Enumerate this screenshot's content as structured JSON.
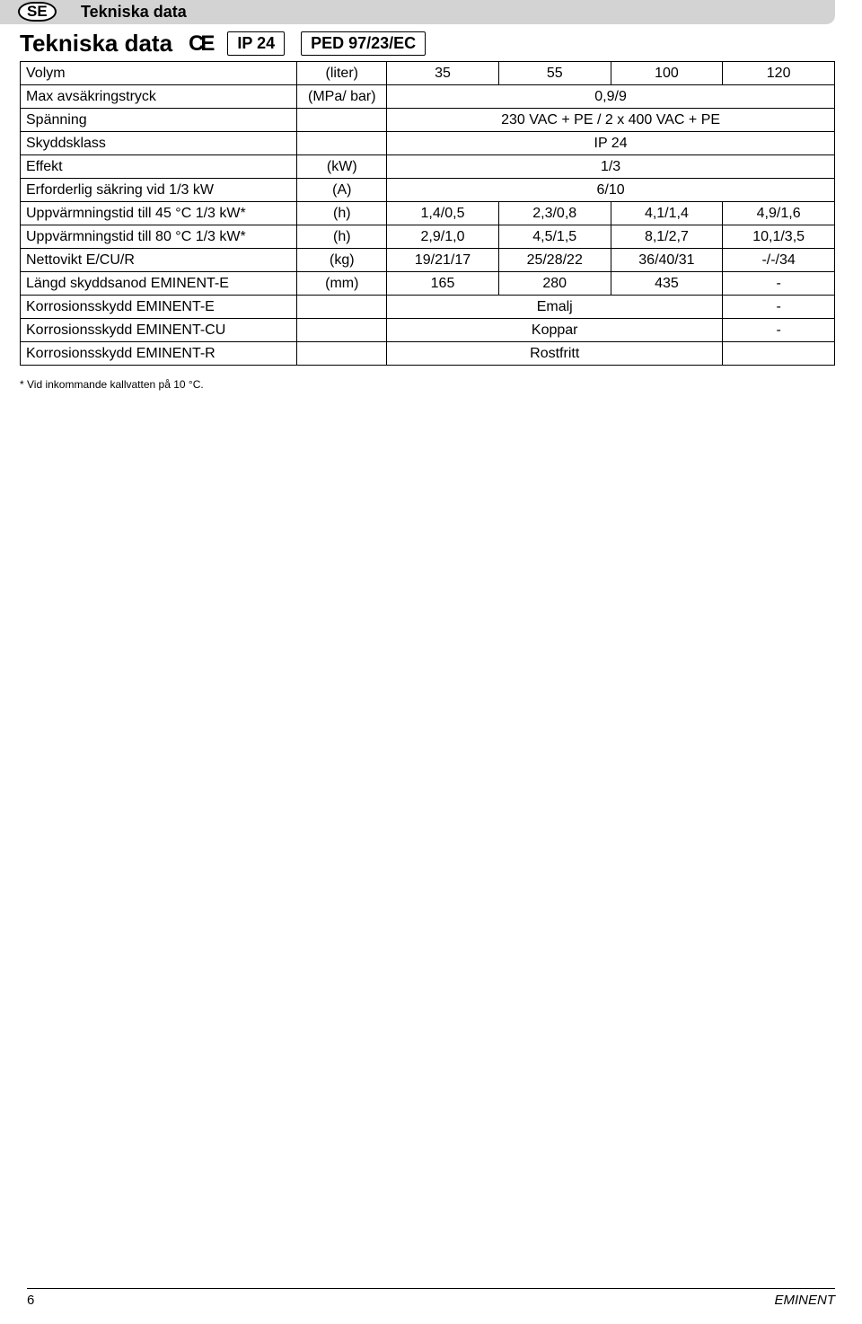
{
  "header": {
    "lang_badge": "SE",
    "title": "Tekniska data"
  },
  "subtitle_row": {
    "subtitle": "Tekniska data",
    "ce_mark": "CE",
    "box1": "IP 24",
    "box2": "PED 97/23/EC"
  },
  "table": {
    "rows": [
      {
        "label": "Volym",
        "unit": "(liter)",
        "vals": [
          "35",
          "55",
          "100",
          "120"
        ]
      },
      {
        "label": "Max avsäkringstryck",
        "unit": "(MPa/ bar)",
        "span": "0,9/9"
      },
      {
        "label": "Spänning",
        "unit": "",
        "span": "230 VAC + PE / 2 x 400 VAC + PE"
      },
      {
        "label": "Skyddsklass",
        "unit": "",
        "span": "IP 24"
      },
      {
        "label": "Effekt",
        "unit": "(kW)",
        "span": "1/3"
      },
      {
        "label": "Erforderlig säkring vid 1/3 kW",
        "unit": "(A)",
        "span": "6/10"
      },
      {
        "label": "Uppvärmningstid till 45 °C 1/3 kW*",
        "unit": "(h)",
        "vals": [
          "1,4/0,5",
          "2,3/0,8",
          "4,1/1,4",
          "4,9/1,6"
        ]
      },
      {
        "label": "Uppvärmningstid till 80 °C 1/3 kW*",
        "unit": "(h)",
        "vals": [
          "2,9/1,0",
          "4,5/1,5",
          "8,1/2,7",
          "10,1/3,5"
        ]
      },
      {
        "label": "Nettovikt E/CU/R",
        "unit": "(kg)",
        "vals": [
          "19/21/17",
          "25/28/22",
          "36/40/31",
          "-/-/34"
        ]
      },
      {
        "label": "Längd skyddsanod EMINENT-E",
        "unit": "(mm)",
        "vals": [
          "165",
          "280",
          "435",
          "-"
        ]
      },
      {
        "label": "Korrosionsskydd EMINENT-E",
        "unit": "",
        "span3": "Emalj",
        "last": "-"
      },
      {
        "label": "Korrosionsskydd EMINENT-CU",
        "unit": "",
        "span3": "Koppar",
        "last": "-"
      },
      {
        "label": "Korrosionsskydd EMINENT-R",
        "unit": "",
        "span3": "Rostfritt",
        "last": ""
      }
    ]
  },
  "footnote": "* Vid inkommande kallvatten på 10 °C.",
  "footer": {
    "page": "6",
    "product": "EMINENT"
  },
  "colors": {
    "header_bg": "#d3d3d3",
    "text": "#000000",
    "border": "#000000",
    "page_bg": "#ffffff"
  }
}
